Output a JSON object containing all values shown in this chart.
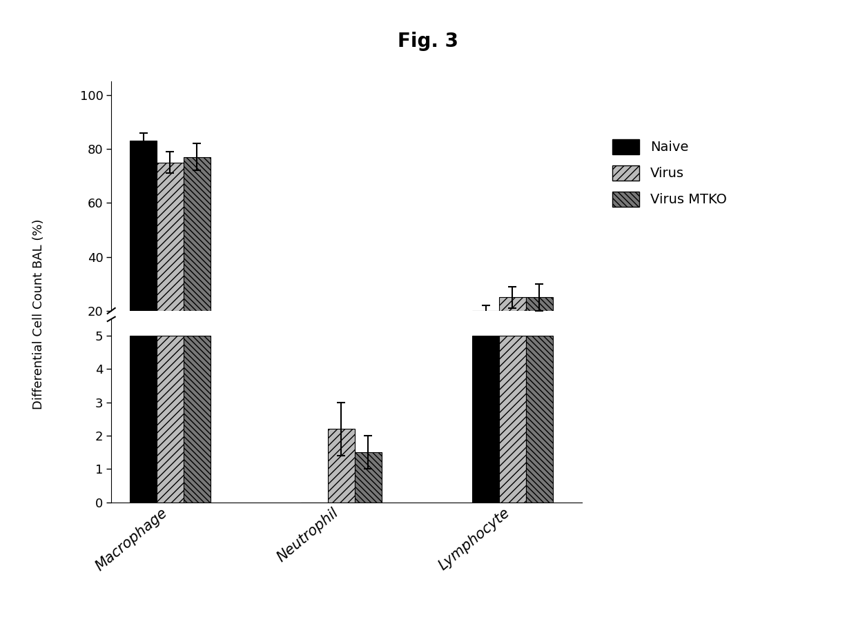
{
  "title": "Fig. 3",
  "ylabel": "Differential Cell Count BAL (%)",
  "categories": [
    "Macrophage",
    "Neutrophil",
    "Lymphocyte"
  ],
  "series": [
    "Naive",
    "Virus",
    "Virus MTKO"
  ],
  "bar_colors": [
    "#000000",
    "#bbbbbb",
    "#777777"
  ],
  "hatch_patterns": [
    "",
    "///",
    "\\\\\\\\"
  ],
  "values_upper": [
    [
      83,
      75,
      77
    ],
    [
      0,
      0,
      0
    ],
    [
      20,
      25,
      25
    ]
  ],
  "errors_upper": [
    [
      3,
      4,
      5
    ],
    [
      0,
      0,
      0
    ],
    [
      2,
      4,
      5
    ]
  ],
  "values_lower": [
    [
      5,
      5,
      5
    ],
    [
      0,
      2.2,
      1.5
    ],
    [
      5,
      5,
      5
    ]
  ],
  "errors_lower": [
    [
      0,
      0,
      0
    ],
    [
      0,
      0.8,
      0.5
    ],
    [
      0,
      0,
      0
    ]
  ],
  "upper_ylim": [
    20,
    105
  ],
  "lower_ylim": [
    0,
    5.5
  ],
  "upper_yticks": [
    20,
    40,
    60,
    80,
    100
  ],
  "lower_yticks": [
    0,
    1,
    2,
    3,
    4,
    5
  ],
  "bar_width": 0.25,
  "group_positions": [
    1.0,
    2.6,
    4.2
  ],
  "legend_labels": [
    "Naive",
    "Virus",
    "Virus MTKO"
  ],
  "background_color": "#ffffff"
}
